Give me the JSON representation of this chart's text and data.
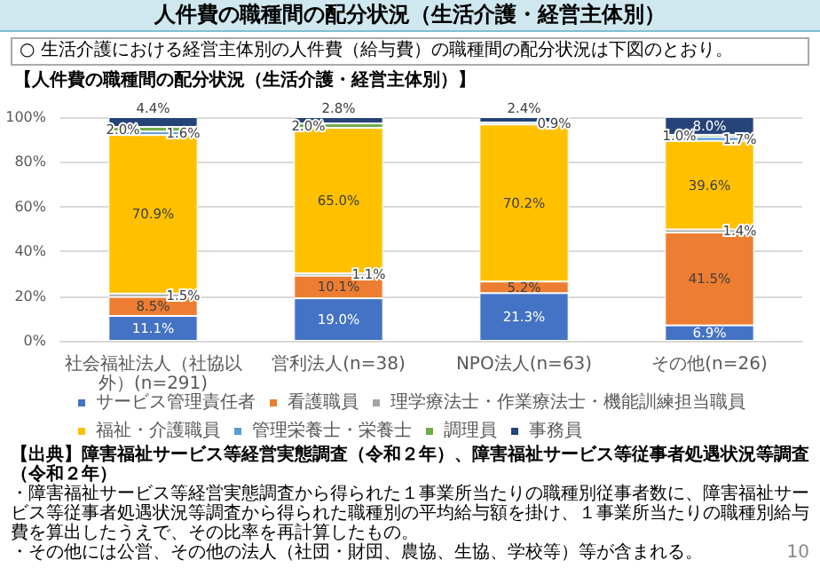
{
  "chart_data": {
    "type": "bar",
    "stacked": true,
    "title": "【人件費の職種間の配分状況（生活介護・経営主体別）】",
    "subtitle": "人件費の職種間の配分状況（生活介護・経営主体別）",
    "annotations": [
      "○ 生活介護における経営主体別の人件費（給与費）の職種間の配分状況は下図のとおり。",
      "【出典】障害福祉サービス等経営実態調査（令和２年）、障害福祉サービス等従事者処遇状況等調査（令和２年）",
      "・障害福祉サービス等経営実態調査から得られた１事業所当たりの職種別従事者数に、障害福祉サービス等従事者処遇状況等調査から得られた職種別の平均給与額を掛け、１事業所当たりの職種別給与費を算出したうえで、その比率を再計算したもの。",
      "・その他には公営、その他の法人（社団・財団、農協、生協、学校等）等が含まれる。",
      "10"
    ],
    "categories": [
      "社会福祉法人（社協以外）(n=291)",
      "営利法人(n=38)",
      "NPO法人(n=63)",
      "その他(n=26)"
    ],
    "series": [
      {
        "name": "サービス管理責任者",
        "color": "#4472c4",
        "values": [
          11.1,
          19.0,
          21.3,
          6.9
        ],
        "value_labels": [
          "11.1%",
          "19.0%",
          "21.3%",
          "6.9%"
        ]
      },
      {
        "name": "看護職員",
        "color": "#ed7d31",
        "values": [
          8.5,
          10.1,
          5.2,
          41.5
        ],
        "value_labels": [
          "8.5%",
          "10.1%",
          "5.2%",
          "41.5%"
        ]
      },
      {
        "name": "理学療法士・作業療法士・機能訓練担当職員",
        "color": "#a5a5a5",
        "values": [
          1.5,
          1.1,
          null,
          1.4
        ],
        "value_labels": [
          "1.5%",
          "1.1%",
          null,
          "1.4%"
        ]
      },
      {
        "name": "福祉・介護職員",
        "color": "#ffc000",
        "values": [
          70.9,
          65.0,
          70.2,
          39.6
        ],
        "value_labels": [
          "70.9%",
          "65.0%",
          "70.2%",
          "39.6%"
        ]
      },
      {
        "name": "管理栄養士・栄養士",
        "color": "#5b9bd5",
        "values": [
          1.6,
          null,
          0.9,
          1.7
        ],
        "value_labels": [
          "1.6%",
          null,
          "0.9%",
          "1.7%"
        ]
      },
      {
        "name": "調理員",
        "color": "#70ad47",
        "values": [
          2.0,
          2.0,
          null,
          1.0
        ],
        "value_labels": [
          "2.0%",
          "2.0%",
          null,
          "1.0%"
        ]
      },
      {
        "name": "事務員",
        "color": "#264478",
        "values": [
          4.4,
          2.8,
          2.4,
          8.0
        ],
        "value_labels": [
          "4.4%",
          "2.8%",
          "2.4%",
          "8.0%"
        ]
      }
    ],
    "ylim": [
      0,
      100
    ],
    "yticks": [
      {
        "value": 0,
        "label": "0%"
      },
      {
        "value": 20,
        "label": "20%"
      },
      {
        "value": 40,
        "label": "40%"
      },
      {
        "value": 60,
        "label": "60%"
      },
      {
        "value": 80,
        "label": "80%"
      },
      {
        "value": 100,
        "label": "100%"
      }
    ],
    "grid": "y",
    "legend": "bottom"
  }
}
